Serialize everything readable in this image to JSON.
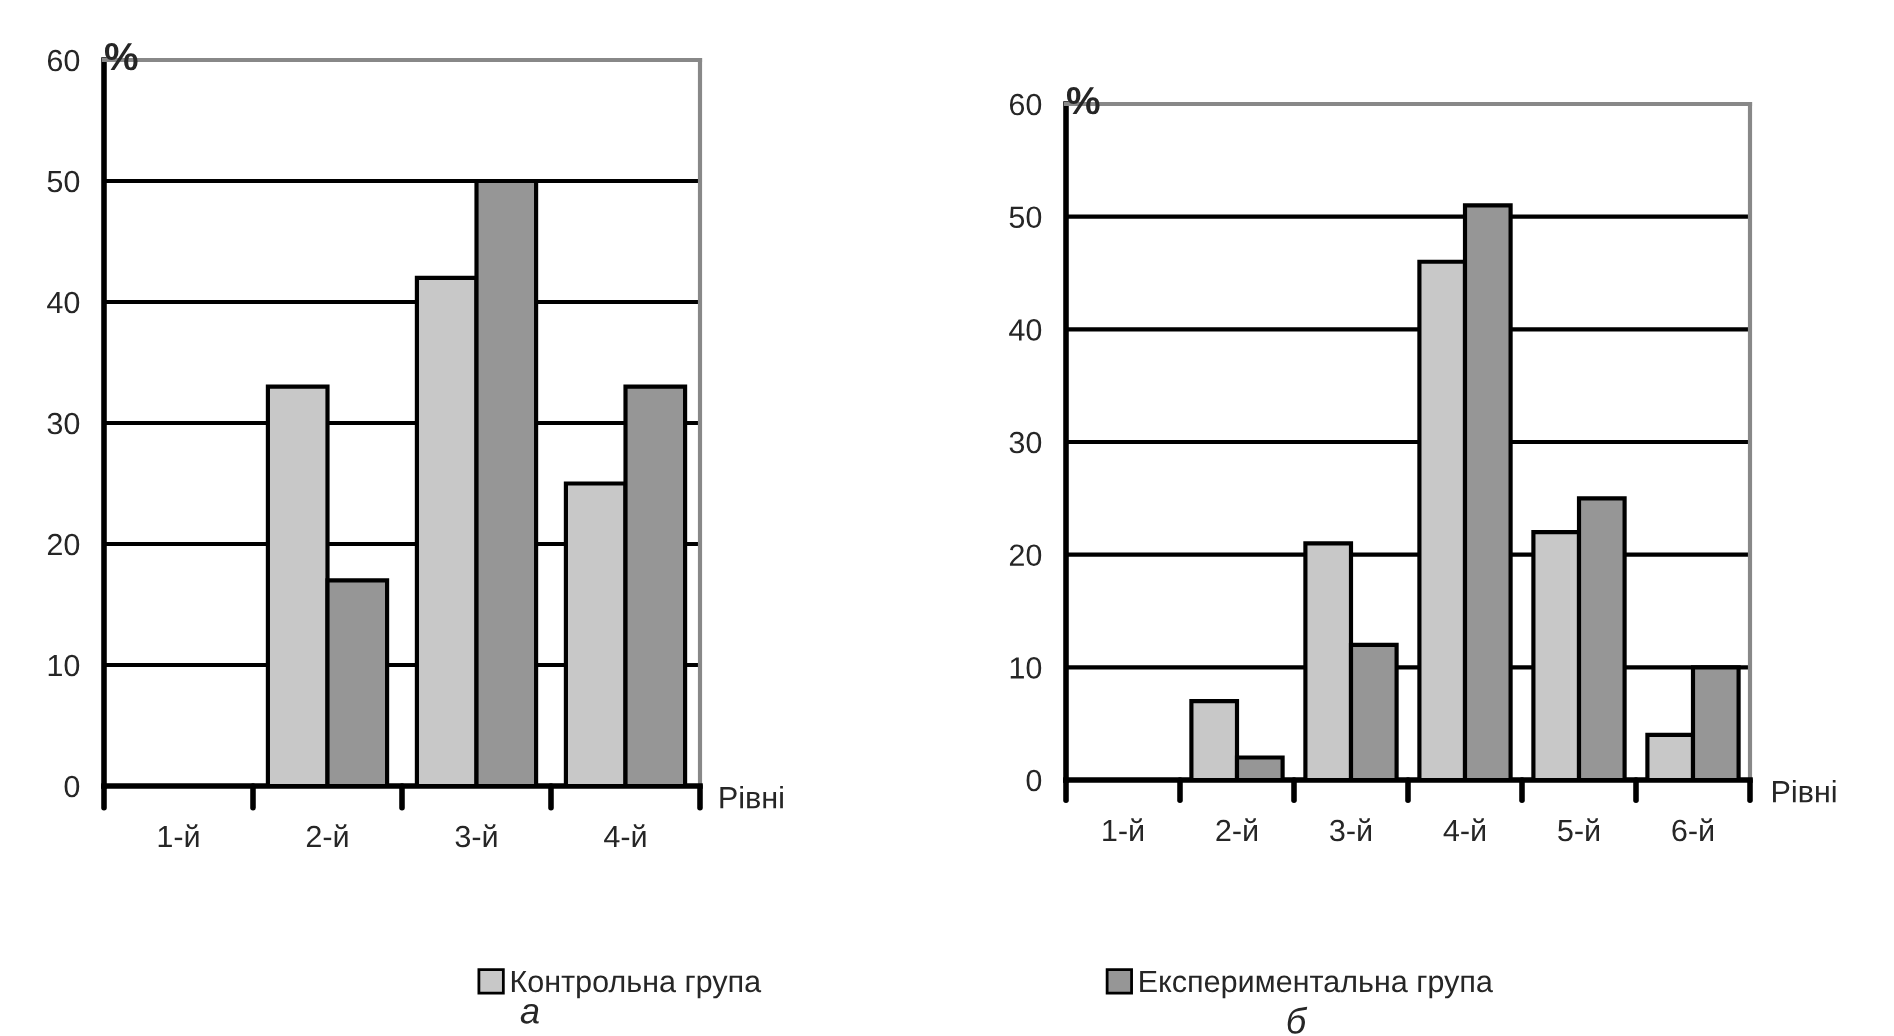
{
  "chart_data": [
    {
      "type": "bar",
      "categories": [
        "1-й",
        "2-й",
        "3-й",
        "4-й"
      ],
      "xlabel": "Рівні",
      "ylabel": "%",
      "ylim": [
        0,
        60
      ],
      "yticks": [
        0,
        10,
        20,
        30,
        40,
        50,
        60
      ],
      "grid": "y",
      "legend": "bottom",
      "series": [
        {
          "name": "Контрольна група",
          "color": "#c8c8c8",
          "values": [
            0,
            33,
            42,
            25
          ]
        },
        {
          "color": "#969696",
          "values": [
            0,
            17,
            50,
            33
          ]
        }
      ],
      "annotations": [
        "а"
      ]
    },
    {
      "type": "bar",
      "categories": [
        "1-й",
        "2-й",
        "3-й",
        "4-й",
        "5-й",
        "6-й"
      ],
      "xlabel": "Рівні",
      "ylabel": "%",
      "ylim": [
        0,
        60
      ],
      "yticks": [
        0,
        10,
        20,
        30,
        40,
        50,
        60
      ],
      "grid": "y",
      "legend": "bottom",
      "series": [
        {
          "color": "#c8c8c8",
          "values": [
            0,
            7,
            21,
            46,
            22,
            4
          ]
        },
        {
          "name": "Експериментальна група",
          "color": "#969696",
          "values": [
            0,
            2,
            12,
            51,
            25,
            10
          ]
        }
      ],
      "annotations": [
        "б"
      ]
    }
  ]
}
